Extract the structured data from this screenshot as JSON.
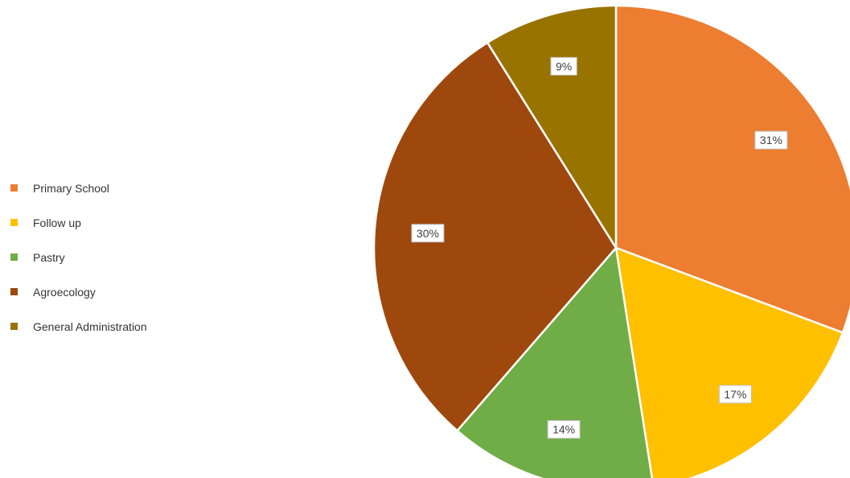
{
  "chart_data": {
    "type": "pie",
    "slices": [
      {
        "label": "Primary School",
        "value": 31,
        "display": "31%",
        "color": "#ed7d31"
      },
      {
        "label": "Follow up",
        "value": 17,
        "display": "17%",
        "color": "#ffc000"
      },
      {
        "label": "Pastry",
        "value": 14,
        "display": "14%",
        "color": "#70ad47"
      },
      {
        "label": "Agroecology",
        "value": 30,
        "display": "30%",
        "color": "#9e480e"
      },
      {
        "label": "General Administration",
        "value": 9,
        "display": "9%",
        "color": "#997300"
      }
    ],
    "legend_position": "left",
    "start_angle": "12 o'clock",
    "direction": "clockwise"
  }
}
